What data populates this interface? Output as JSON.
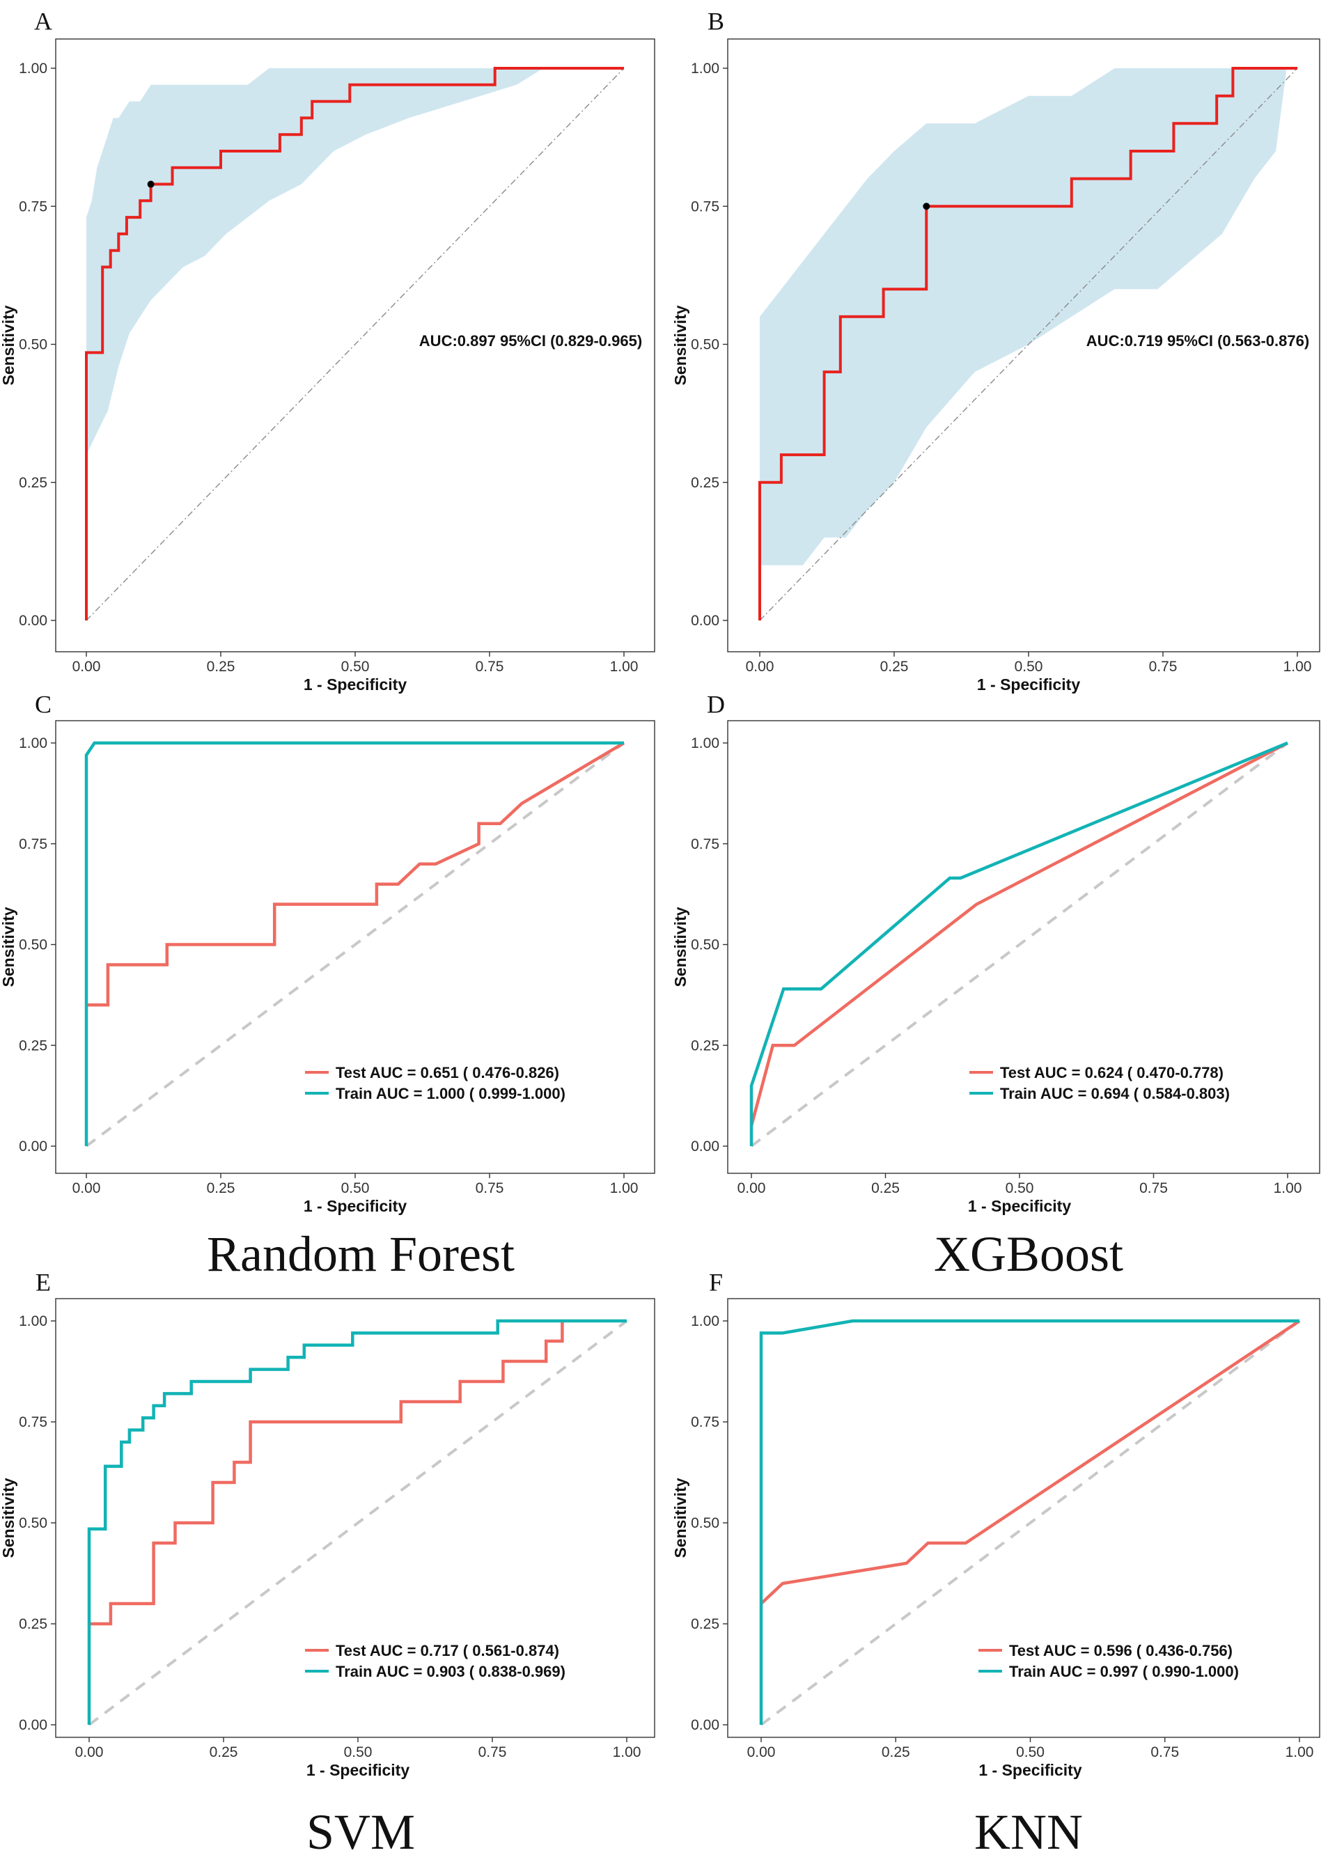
{
  "figure_colors": {
    "roc_line": "#e8221e",
    "ci_fill": "#cfe6ef",
    "test": "#ef6b61",
    "train": "#12b3b5",
    "diagonal": "#c8c8c8",
    "diagonal_dashdot": "#8a8a8a",
    "text": "#111111"
  },
  "captions": {
    "C": "Random Forest",
    "D": "XGBoost",
    "E": "SVM",
    "F": "KNN"
  },
  "chart_data": [
    {
      "id": "A",
      "letter": "A",
      "type": "line",
      "xlabel": "1 - Specificity",
      "ylabel": "Sensitivity",
      "xlim": [
        0,
        1
      ],
      "ylim": [
        0,
        1
      ],
      "ticks": [
        "0.00",
        "0.25",
        "0.50",
        "0.75",
        "1.00"
      ],
      "diagonal": "dashdot",
      "annotation": "AUC:0.897 95%CI (0.829-0.965)",
      "cutoff_point": [
        0.12,
        0.79
      ],
      "series": [
        {
          "name": "ROC",
          "color": "#e8221e",
          "step": true,
          "points": [
            [
              0,
              0
            ],
            [
              0,
              0.485
            ],
            [
              0.03,
              0.485
            ],
            [
              0.03,
              0.64
            ],
            [
              0.045,
              0.64
            ],
            [
              0.045,
              0.67
            ],
            [
              0.06,
              0.67
            ],
            [
              0.06,
              0.7
            ],
            [
              0.075,
              0.7
            ],
            [
              0.075,
              0.73
            ],
            [
              0.1,
              0.73
            ],
            [
              0.1,
              0.76
            ],
            [
              0.12,
              0.76
            ],
            [
              0.12,
              0.79
            ],
            [
              0.16,
              0.79
            ],
            [
              0.16,
              0.82
            ],
            [
              0.25,
              0.82
            ],
            [
              0.25,
              0.85
            ],
            [
              0.36,
              0.85
            ],
            [
              0.36,
              0.88
            ],
            [
              0.4,
              0.88
            ],
            [
              0.4,
              0.91
            ],
            [
              0.42,
              0.91
            ],
            [
              0.42,
              0.94
            ],
            [
              0.49,
              0.94
            ],
            [
              0.49,
              0.97
            ],
            [
              0.76,
              0.97
            ],
            [
              0.76,
              1.0
            ],
            [
              1.0,
              1.0
            ]
          ]
        }
      ],
      "ci_band": {
        "x": [
          0,
          0.01,
          0.02,
          0.03,
          0.04,
          0.05,
          0.06,
          0.08,
          0.1,
          0.12,
          0.15,
          0.18,
          0.22,
          0.26,
          0.3,
          0.34,
          0.4,
          0.46,
          0.52,
          0.6,
          0.7,
          0.8,
          0.85
        ],
        "upper": [
          0.73,
          0.76,
          0.82,
          0.85,
          0.88,
          0.91,
          0.91,
          0.94,
          0.94,
          0.97,
          0.97,
          0.97,
          0.97,
          0.97,
          0.97,
          1.0,
          1.0,
          1.0,
          1.0,
          1.0,
          1.0,
          1.0,
          1.0
        ],
        "lower": [
          0.3,
          0.32,
          0.34,
          0.36,
          0.38,
          0.42,
          0.46,
          0.52,
          0.55,
          0.58,
          0.61,
          0.64,
          0.66,
          0.7,
          0.73,
          0.76,
          0.79,
          0.85,
          0.88,
          0.91,
          0.94,
          0.97,
          1.0
        ]
      }
    },
    {
      "id": "B",
      "letter": "B",
      "type": "line",
      "xlabel": "1 - Specificity",
      "ylabel": "Sensitivity",
      "xlim": [
        0,
        1
      ],
      "ylim": [
        0,
        1
      ],
      "ticks": [
        "0.00",
        "0.25",
        "0.50",
        "0.75",
        "1.00"
      ],
      "diagonal": "dashdot",
      "annotation": "AUC:0.719 95%CI (0.563-0.876)",
      "cutoff_point": [
        0.31,
        0.75
      ],
      "series": [
        {
          "name": "ROC",
          "color": "#e8221e",
          "step": true,
          "points": [
            [
              0,
              0
            ],
            [
              0,
              0.25
            ],
            [
              0.04,
              0.25
            ],
            [
              0.04,
              0.3
            ],
            [
              0.12,
              0.3
            ],
            [
              0.12,
              0.45
            ],
            [
              0.15,
              0.45
            ],
            [
              0.15,
              0.55
            ],
            [
              0.23,
              0.55
            ],
            [
              0.23,
              0.6
            ],
            [
              0.31,
              0.6
            ],
            [
              0.31,
              0.75
            ],
            [
              0.58,
              0.75
            ],
            [
              0.58,
              0.8
            ],
            [
              0.69,
              0.8
            ],
            [
              0.69,
              0.85
            ],
            [
              0.77,
              0.85
            ],
            [
              0.77,
              0.9
            ],
            [
              0.85,
              0.9
            ],
            [
              0.85,
              0.95
            ],
            [
              0.88,
              0.95
            ],
            [
              0.88,
              1.0
            ],
            [
              1.0,
              1.0
            ]
          ]
        }
      ],
      "ci_band": {
        "x": [
          0,
          0.04,
          0.08,
          0.12,
          0.16,
          0.2,
          0.25,
          0.31,
          0.4,
          0.5,
          0.58,
          0.66,
          0.74,
          0.8,
          0.86,
          0.92,
          0.96,
          0.98
        ],
        "upper": [
          0.55,
          0.6,
          0.65,
          0.7,
          0.75,
          0.8,
          0.85,
          0.9,
          0.9,
          0.95,
          0.95,
          1.0,
          1.0,
          1.0,
          1.0,
          1.0,
          1.0,
          1.0
        ],
        "lower": [
          0.1,
          0.1,
          0.1,
          0.15,
          0.15,
          0.2,
          0.25,
          0.35,
          0.45,
          0.5,
          0.55,
          0.6,
          0.6,
          0.65,
          0.7,
          0.8,
          0.85,
          1.0
        ]
      }
    },
    {
      "id": "C",
      "letter": "C",
      "type": "line",
      "xlabel": "1 - Specificity",
      "ylabel": "Sensitivity",
      "xlim": [
        0,
        1
      ],
      "ylim": [
        0,
        1
      ],
      "ticks": [
        "0.00",
        "0.25",
        "0.50",
        "0.75",
        "1.00"
      ],
      "diagonal": "dashed",
      "legend": [
        "Test AUC = 0.651 ( 0.476-0.826)",
        "Train AUC = 1.000 ( 0.999-1.000)"
      ],
      "series": [
        {
          "name": "Test",
          "color": "#ef6b61",
          "step": false,
          "points": [
            [
              0,
              0.35
            ],
            [
              0.04,
              0.35
            ],
            [
              0.04,
              0.45
            ],
            [
              0.15,
              0.45
            ],
            [
              0.15,
              0.5
            ],
            [
              0.35,
              0.5
            ],
            [
              0.35,
              0.6
            ],
            [
              0.54,
              0.6
            ],
            [
              0.54,
              0.65
            ],
            [
              0.58,
              0.65
            ],
            [
              0.62,
              0.7
            ],
            [
              0.65,
              0.7
            ],
            [
              0.73,
              0.75
            ],
            [
              0.73,
              0.8
            ],
            [
              0.77,
              0.8
            ],
            [
              0.81,
              0.85
            ],
            [
              1.0,
              1.0
            ]
          ]
        },
        {
          "name": "Train",
          "color": "#12b3b5",
          "step": false,
          "points": [
            [
              0,
              0
            ],
            [
              0,
              0.97
            ],
            [
              0.015,
              1.0
            ],
            [
              1.0,
              1.0
            ]
          ]
        }
      ]
    },
    {
      "id": "D",
      "letter": "D",
      "type": "line",
      "xlabel": "1 - Specificity",
      "ylabel": "Sensitivity",
      "xlim": [
        0,
        1
      ],
      "ylim": [
        0,
        1
      ],
      "ticks": [
        "0.00",
        "0.25",
        "0.50",
        "0.75",
        "1.00"
      ],
      "diagonal": "dashed",
      "legend": [
        "Test AUC = 0.624 ( 0.470-0.778)",
        "Train AUC = 0.694 ( 0.584-0.803)"
      ],
      "series": [
        {
          "name": "Test",
          "color": "#ef6b61",
          "step": false,
          "points": [
            [
              0,
              0.05
            ],
            [
              0.04,
              0.25
            ],
            [
              0.08,
              0.25
            ],
            [
              0.42,
              0.6
            ],
            [
              1.0,
              1.0
            ]
          ]
        },
        {
          "name": "Train",
          "color": "#12b3b5",
          "step": false,
          "points": [
            [
              0,
              0
            ],
            [
              0,
              0.15
            ],
            [
              0.06,
              0.39
            ],
            [
              0.13,
              0.39
            ],
            [
              0.37,
              0.665
            ],
            [
              0.39,
              0.665
            ],
            [
              1.0,
              1.0
            ]
          ]
        }
      ]
    },
    {
      "id": "E",
      "letter": "E",
      "type": "line",
      "xlabel": "1 - Specificity",
      "ylabel": "Sensitivity",
      "xlim": [
        0,
        1
      ],
      "ylim": [
        0,
        1
      ],
      "ticks": [
        "0.00",
        "0.25",
        "0.50",
        "0.75",
        "1.00"
      ],
      "diagonal": "dashed",
      "legend": [
        "Test AUC = 0.717 ( 0.561-0.874)",
        "Train AUC = 0.903 ( 0.838-0.969)"
      ],
      "series": [
        {
          "name": "Test",
          "color": "#ef6b61",
          "step": false,
          "points": [
            [
              0,
              0.25
            ],
            [
              0.04,
              0.25
            ],
            [
              0.04,
              0.3
            ],
            [
              0.12,
              0.3
            ],
            [
              0.12,
              0.45
            ],
            [
              0.16,
              0.45
            ],
            [
              0.16,
              0.5
            ],
            [
              0.23,
              0.5
            ],
            [
              0.23,
              0.6
            ],
            [
              0.27,
              0.6
            ],
            [
              0.27,
              0.65
            ],
            [
              0.3,
              0.65
            ],
            [
              0.3,
              0.75
            ],
            [
              0.58,
              0.75
            ],
            [
              0.58,
              0.8
            ],
            [
              0.69,
              0.8
            ],
            [
              0.69,
              0.85
            ],
            [
              0.77,
              0.85
            ],
            [
              0.77,
              0.9
            ],
            [
              0.85,
              0.9
            ],
            [
              0.85,
              0.95
            ],
            [
              0.88,
              0.95
            ],
            [
              0.88,
              1.0
            ]
          ]
        },
        {
          "name": "Train",
          "color": "#12b3b5",
          "step": false,
          "points": [
            [
              0,
              0
            ],
            [
              0,
              0.485
            ],
            [
              0.03,
              0.485
            ],
            [
              0.03,
              0.64
            ],
            [
              0.06,
              0.64
            ],
            [
              0.06,
              0.7
            ],
            [
              0.075,
              0.7
            ],
            [
              0.075,
              0.73
            ],
            [
              0.1,
              0.73
            ],
            [
              0.1,
              0.76
            ],
            [
              0.12,
              0.76
            ],
            [
              0.12,
              0.79
            ],
            [
              0.14,
              0.79
            ],
            [
              0.14,
              0.82
            ],
            [
              0.19,
              0.82
            ],
            [
              0.19,
              0.85
            ],
            [
              0.3,
              0.85
            ],
            [
              0.3,
              0.88
            ],
            [
              0.37,
              0.88
            ],
            [
              0.37,
              0.91
            ],
            [
              0.4,
              0.91
            ],
            [
              0.4,
              0.94
            ],
            [
              0.49,
              0.94
            ],
            [
              0.49,
              0.97
            ],
            [
              0.76,
              0.97
            ],
            [
              0.76,
              1.0
            ],
            [
              1.0,
              1.0
            ]
          ]
        }
      ]
    },
    {
      "id": "F",
      "letter": "F",
      "type": "line",
      "xlabel": "1 - Specificity",
      "ylabel": "Sensitivity",
      "xlim": [
        0,
        1
      ],
      "ylim": [
        0,
        1
      ],
      "ticks": [
        "0.00",
        "0.25",
        "0.50",
        "0.75",
        "1.00"
      ],
      "diagonal": "dashed",
      "legend": [
        "Test AUC = 0.596 ( 0.436-0.756)",
        "Train AUC = 0.997 ( 0.990-1.000)"
      ],
      "series": [
        {
          "name": "Test",
          "color": "#ef6b61",
          "step": false,
          "points": [
            [
              0,
              0.3
            ],
            [
              0.04,
              0.35
            ],
            [
              0.27,
              0.4
            ],
            [
              0.31,
              0.45
            ],
            [
              0.38,
              0.45
            ],
            [
              1.0,
              1.0
            ]
          ]
        },
        {
          "name": "Train",
          "color": "#12b3b5",
          "step": false,
          "points": [
            [
              0,
              0
            ],
            [
              0,
              0.97
            ],
            [
              0.04,
              0.97
            ],
            [
              0.17,
              1.0
            ],
            [
              1.0,
              1.0
            ]
          ]
        }
      ]
    }
  ]
}
